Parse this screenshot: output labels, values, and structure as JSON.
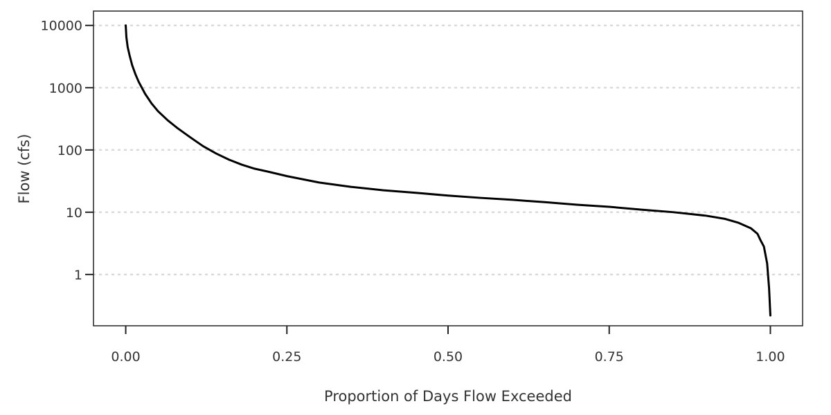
{
  "chart_data": {
    "type": "line",
    "title": "",
    "xlabel": "Proportion of Days Flow Exceeded",
    "ylabel": "Flow (cfs)",
    "xlim": [
      -0.05,
      1.05
    ],
    "ylim": [
      0.15,
      17000
    ],
    "yscale": "log",
    "grid": "horizontal dotted at major y ticks",
    "legend": "none",
    "x_ticks": [
      {
        "value": 0.0,
        "label": "0.00"
      },
      {
        "value": 0.25,
        "label": "0.25"
      },
      {
        "value": 0.5,
        "label": "0.50"
      },
      {
        "value": 0.75,
        "label": "0.75"
      },
      {
        "value": 1.0,
        "label": "1.00"
      }
    ],
    "y_ticks": [
      {
        "value": 1,
        "label": "1"
      },
      {
        "value": 10,
        "label": "10"
      },
      {
        "value": 100,
        "label": "100"
      },
      {
        "value": 1000,
        "label": "1000"
      },
      {
        "value": 10000,
        "label": "10000"
      }
    ],
    "series": [
      {
        "color": "#000000",
        "x": [
          0.0,
          0.001,
          0.003,
          0.006,
          0.01,
          0.015,
          0.02,
          0.03,
          0.04,
          0.05,
          0.065,
          0.08,
          0.1,
          0.12,
          0.14,
          0.16,
          0.18,
          0.2,
          0.22,
          0.25,
          0.3,
          0.35,
          0.4,
          0.45,
          0.5,
          0.55,
          0.6,
          0.65,
          0.7,
          0.75,
          0.8,
          0.85,
          0.9,
          0.93,
          0.95,
          0.97,
          0.98,
          0.985,
          0.99,
          0.995,
          0.998,
          1.0
        ],
        "y": [
          10000,
          6500,
          4500,
          3300,
          2300,
          1650,
          1250,
          800,
          560,
          420,
          300,
          225,
          160,
          115,
          88,
          70,
          58,
          50,
          45,
          38,
          30,
          25.5,
          22.5,
          20.5,
          18.5,
          17,
          15.8,
          14.5,
          13.2,
          12.2,
          11,
          10,
          8.8,
          7.8,
          6.8,
          5.5,
          4.5,
          3.5,
          2.8,
          1.5,
          0.6,
          0.22
        ]
      }
    ]
  }
}
